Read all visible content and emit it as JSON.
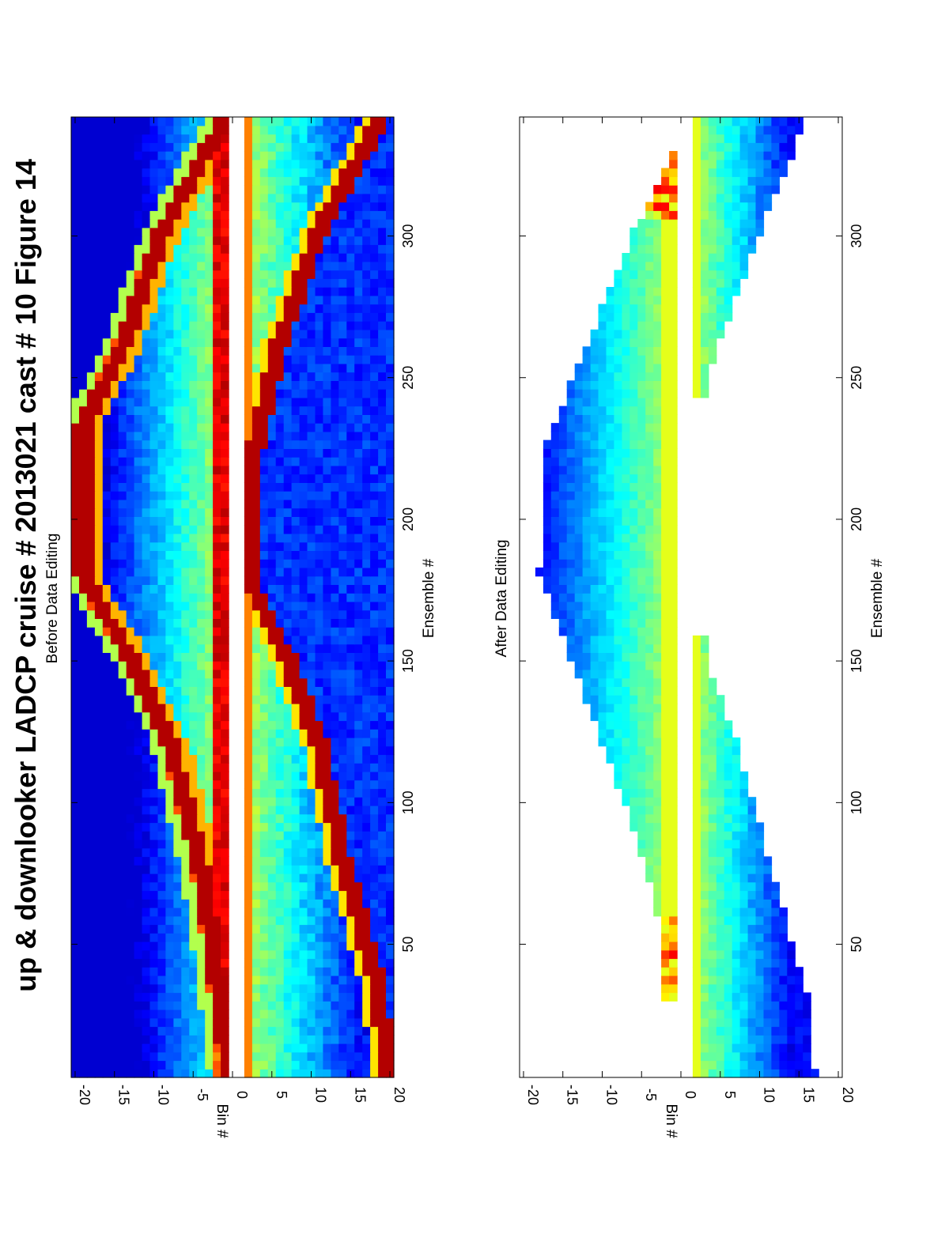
{
  "figure": {
    "title": "up & downlooker LADCP cruise # 2013021 cast # 10  Figure 14"
  },
  "chart_data": [
    {
      "type": "heatmap",
      "title": "Before Data Editing",
      "xlabel": "Ensemble #",
      "ylabel": "Bin #",
      "xlim": [
        3,
        342
      ],
      "ylim": [
        -20.5,
        20.5
      ],
      "x_ticks": [
        50,
        100,
        150,
        200,
        250,
        300
      ],
      "y_ticks": [
        -20,
        -15,
        -10,
        -5,
        0,
        5,
        10,
        15,
        20
      ],
      "x_tick_labels": [
        "50",
        "100",
        "150",
        "200",
        "250",
        "300"
      ],
      "y_tick_labels": [
        "-20",
        "-15",
        "-10",
        "-5",
        "0",
        "5",
        "10",
        "15",
        "20"
      ],
      "colormap": "jet",
      "orientation": "rotated 90° counter-clockwise on the page",
      "features": {
        "uplooker_bins": [
          -20,
          -1
        ],
        "downlooker_bins": [
          2,
          20
        ],
        "gap_bin": 0,
        "surface_reflection_track": [
          [
            5,
            -0.5
          ],
          [
            75,
            -4
          ],
          [
            120,
            -8
          ],
          [
            150,
            -13
          ],
          [
            178,
            -19
          ],
          [
            232,
            -19
          ],
          [
            260,
            -14
          ],
          [
            300,
            -9
          ],
          [
            340,
            -1
          ]
        ],
        "bottom_reflection_track": [
          [
            5,
            20
          ],
          [
            40,
            18
          ],
          [
            80,
            14
          ],
          [
            120,
            11
          ],
          [
            150,
            7
          ],
          [
            178,
            2
          ],
          [
            225,
            3
          ],
          [
            260,
            6
          ],
          [
            300,
            11
          ],
          [
            340,
            19
          ]
        ]
      }
    },
    {
      "type": "heatmap",
      "title": "After Data Editing",
      "xlabel": "Ensemble #",
      "ylabel": "Bin #",
      "xlim": [
        3,
        342
      ],
      "ylim": [
        -20.5,
        20.5
      ],
      "x_ticks": [
        50,
        100,
        150,
        200,
        250,
        300
      ],
      "y_ticks": [
        -20,
        -15,
        -10,
        -5,
        0,
        5,
        10,
        15,
        20
      ],
      "x_tick_labels": [
        "50",
        "100",
        "150",
        "200",
        "250",
        "300"
      ],
      "y_tick_labels": [
        "-20",
        "-15",
        "-10",
        "-5",
        "0",
        "5",
        "10",
        "15",
        "20"
      ],
      "colormap": "jet",
      "orientation": "rotated 90° counter-clockwise on the page",
      "features": {
        "uplooker_present_ensembles": [
          28,
          327
        ],
        "uplooker_max_bin_profile": [
          [
            28,
            -2
          ],
          [
            60,
            -3
          ],
          [
            90,
            -6
          ],
          [
            120,
            -10
          ],
          [
            150,
            -14
          ],
          [
            180,
            -18
          ],
          [
            225,
            -17
          ],
          [
            260,
            -12
          ],
          [
            300,
            -6
          ],
          [
            327,
            -1
          ]
        ],
        "downlooker_ensembles_1": [
          3,
          158
        ],
        "downlooker_ensembles_2": [
          242,
          342
        ],
        "downlooker_max_bin_profile": [
          [
            5,
            17
          ],
          [
            30,
            16
          ],
          [
            60,
            13
          ],
          [
            90,
            10
          ],
          [
            120,
            7
          ],
          [
            150,
            3
          ],
          [
            245,
            3
          ],
          [
            270,
            6
          ],
          [
            300,
            10
          ],
          [
            340,
            16
          ]
        ]
      }
    }
  ]
}
